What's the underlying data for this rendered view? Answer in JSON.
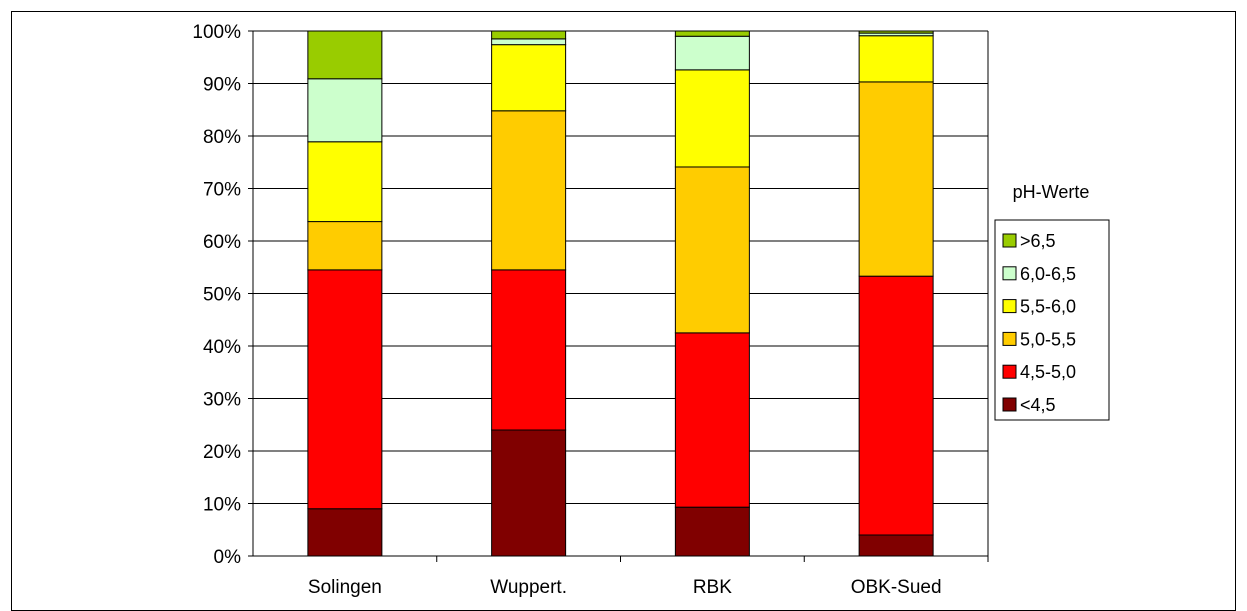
{
  "chart_data": {
    "type": "bar",
    "stacked": true,
    "percent_scale": true,
    "categories": [
      "Solingen",
      "Wuppert.",
      "RBK",
      "OBK-Sued"
    ],
    "y_tick_labels": [
      "0%",
      "10%",
      "20%",
      "30%",
      "40%",
      "50%",
      "60%",
      "70%",
      "80%",
      "90%",
      "100%"
    ],
    "ylim": [
      0,
      100
    ],
    "grid": true,
    "legend_title": "pH-Werte",
    "legend_position": "right",
    "series": [
      {
        "name": "<4,5",
        "color": "#800000",
        "values": [
          9,
          24,
          9.3,
          4
        ]
      },
      {
        "name": "4,5-5,0",
        "color": "#FF0000",
        "values": [
          45.5,
          30.5,
          33.2,
          49.3
        ]
      },
      {
        "name": "5,0-5,5",
        "color": "#FFCC00",
        "values": [
          9.2,
          30.3,
          31.6,
          37
        ]
      },
      {
        "name": "5,5-6,0",
        "color": "#FFFF00",
        "values": [
          15.2,
          12.6,
          18.5,
          8.8
        ]
      },
      {
        "name": "6,0-6,5",
        "color": "#CCFFCC",
        "values": [
          12,
          1.1,
          6.4,
          0.5
        ]
      },
      {
        "name": ">6,5",
        "color": "#99CC00",
        "values": [
          9.1,
          1.5,
          1,
          0.4
        ]
      }
    ]
  }
}
